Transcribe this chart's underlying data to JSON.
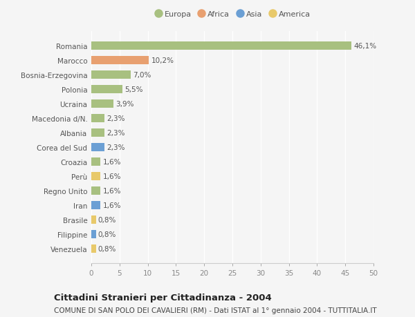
{
  "categories": [
    "Venezuela",
    "Filippine",
    "Brasile",
    "Iran",
    "Regno Unito",
    "Perù",
    "Croazia",
    "Corea del Sud",
    "Albania",
    "Macedonia d/N.",
    "Ucraina",
    "Polonia",
    "Bosnia-Erzegovina",
    "Marocco",
    "Romania"
  ],
  "values": [
    0.8,
    0.8,
    0.8,
    1.6,
    1.6,
    1.6,
    1.6,
    2.3,
    2.3,
    2.3,
    3.9,
    5.5,
    7.0,
    10.2,
    46.1
  ],
  "labels": [
    "0,8%",
    "0,8%",
    "0,8%",
    "1,6%",
    "1,6%",
    "1,6%",
    "1,6%",
    "2,3%",
    "2,3%",
    "2,3%",
    "3,9%",
    "5,5%",
    "7,0%",
    "10,2%",
    "46,1%"
  ],
  "colors": [
    "#e8c96a",
    "#6b9fd4",
    "#e8c96a",
    "#6b9fd4",
    "#a8c080",
    "#e8c96a",
    "#a8c080",
    "#6b9fd4",
    "#a8c080",
    "#a8c080",
    "#a8c080",
    "#a8c080",
    "#a8c080",
    "#e8a070",
    "#a8c080"
  ],
  "legend_labels": [
    "Europa",
    "Africa",
    "Asia",
    "America"
  ],
  "legend_colors": [
    "#a8c080",
    "#e8a070",
    "#6b9fd4",
    "#e8c96a"
  ],
  "title": "Cittadini Stranieri per Cittadinanza - 2004",
  "subtitle": "COMUNE DI SAN POLO DEI CAVALIERI (RM) - Dati ISTAT al 1° gennaio 2004 - TUTTITALIA.IT",
  "xlim": [
    0,
    50
  ],
  "xticks": [
    0,
    5,
    10,
    15,
    20,
    25,
    30,
    35,
    40,
    45,
    50
  ],
  "background_color": "#f5f5f5",
  "bar_height": 0.55,
  "title_fontsize": 9.5,
  "subtitle_fontsize": 7.5,
  "label_fontsize": 7.5,
  "tick_fontsize": 7.5,
  "legend_fontsize": 8
}
